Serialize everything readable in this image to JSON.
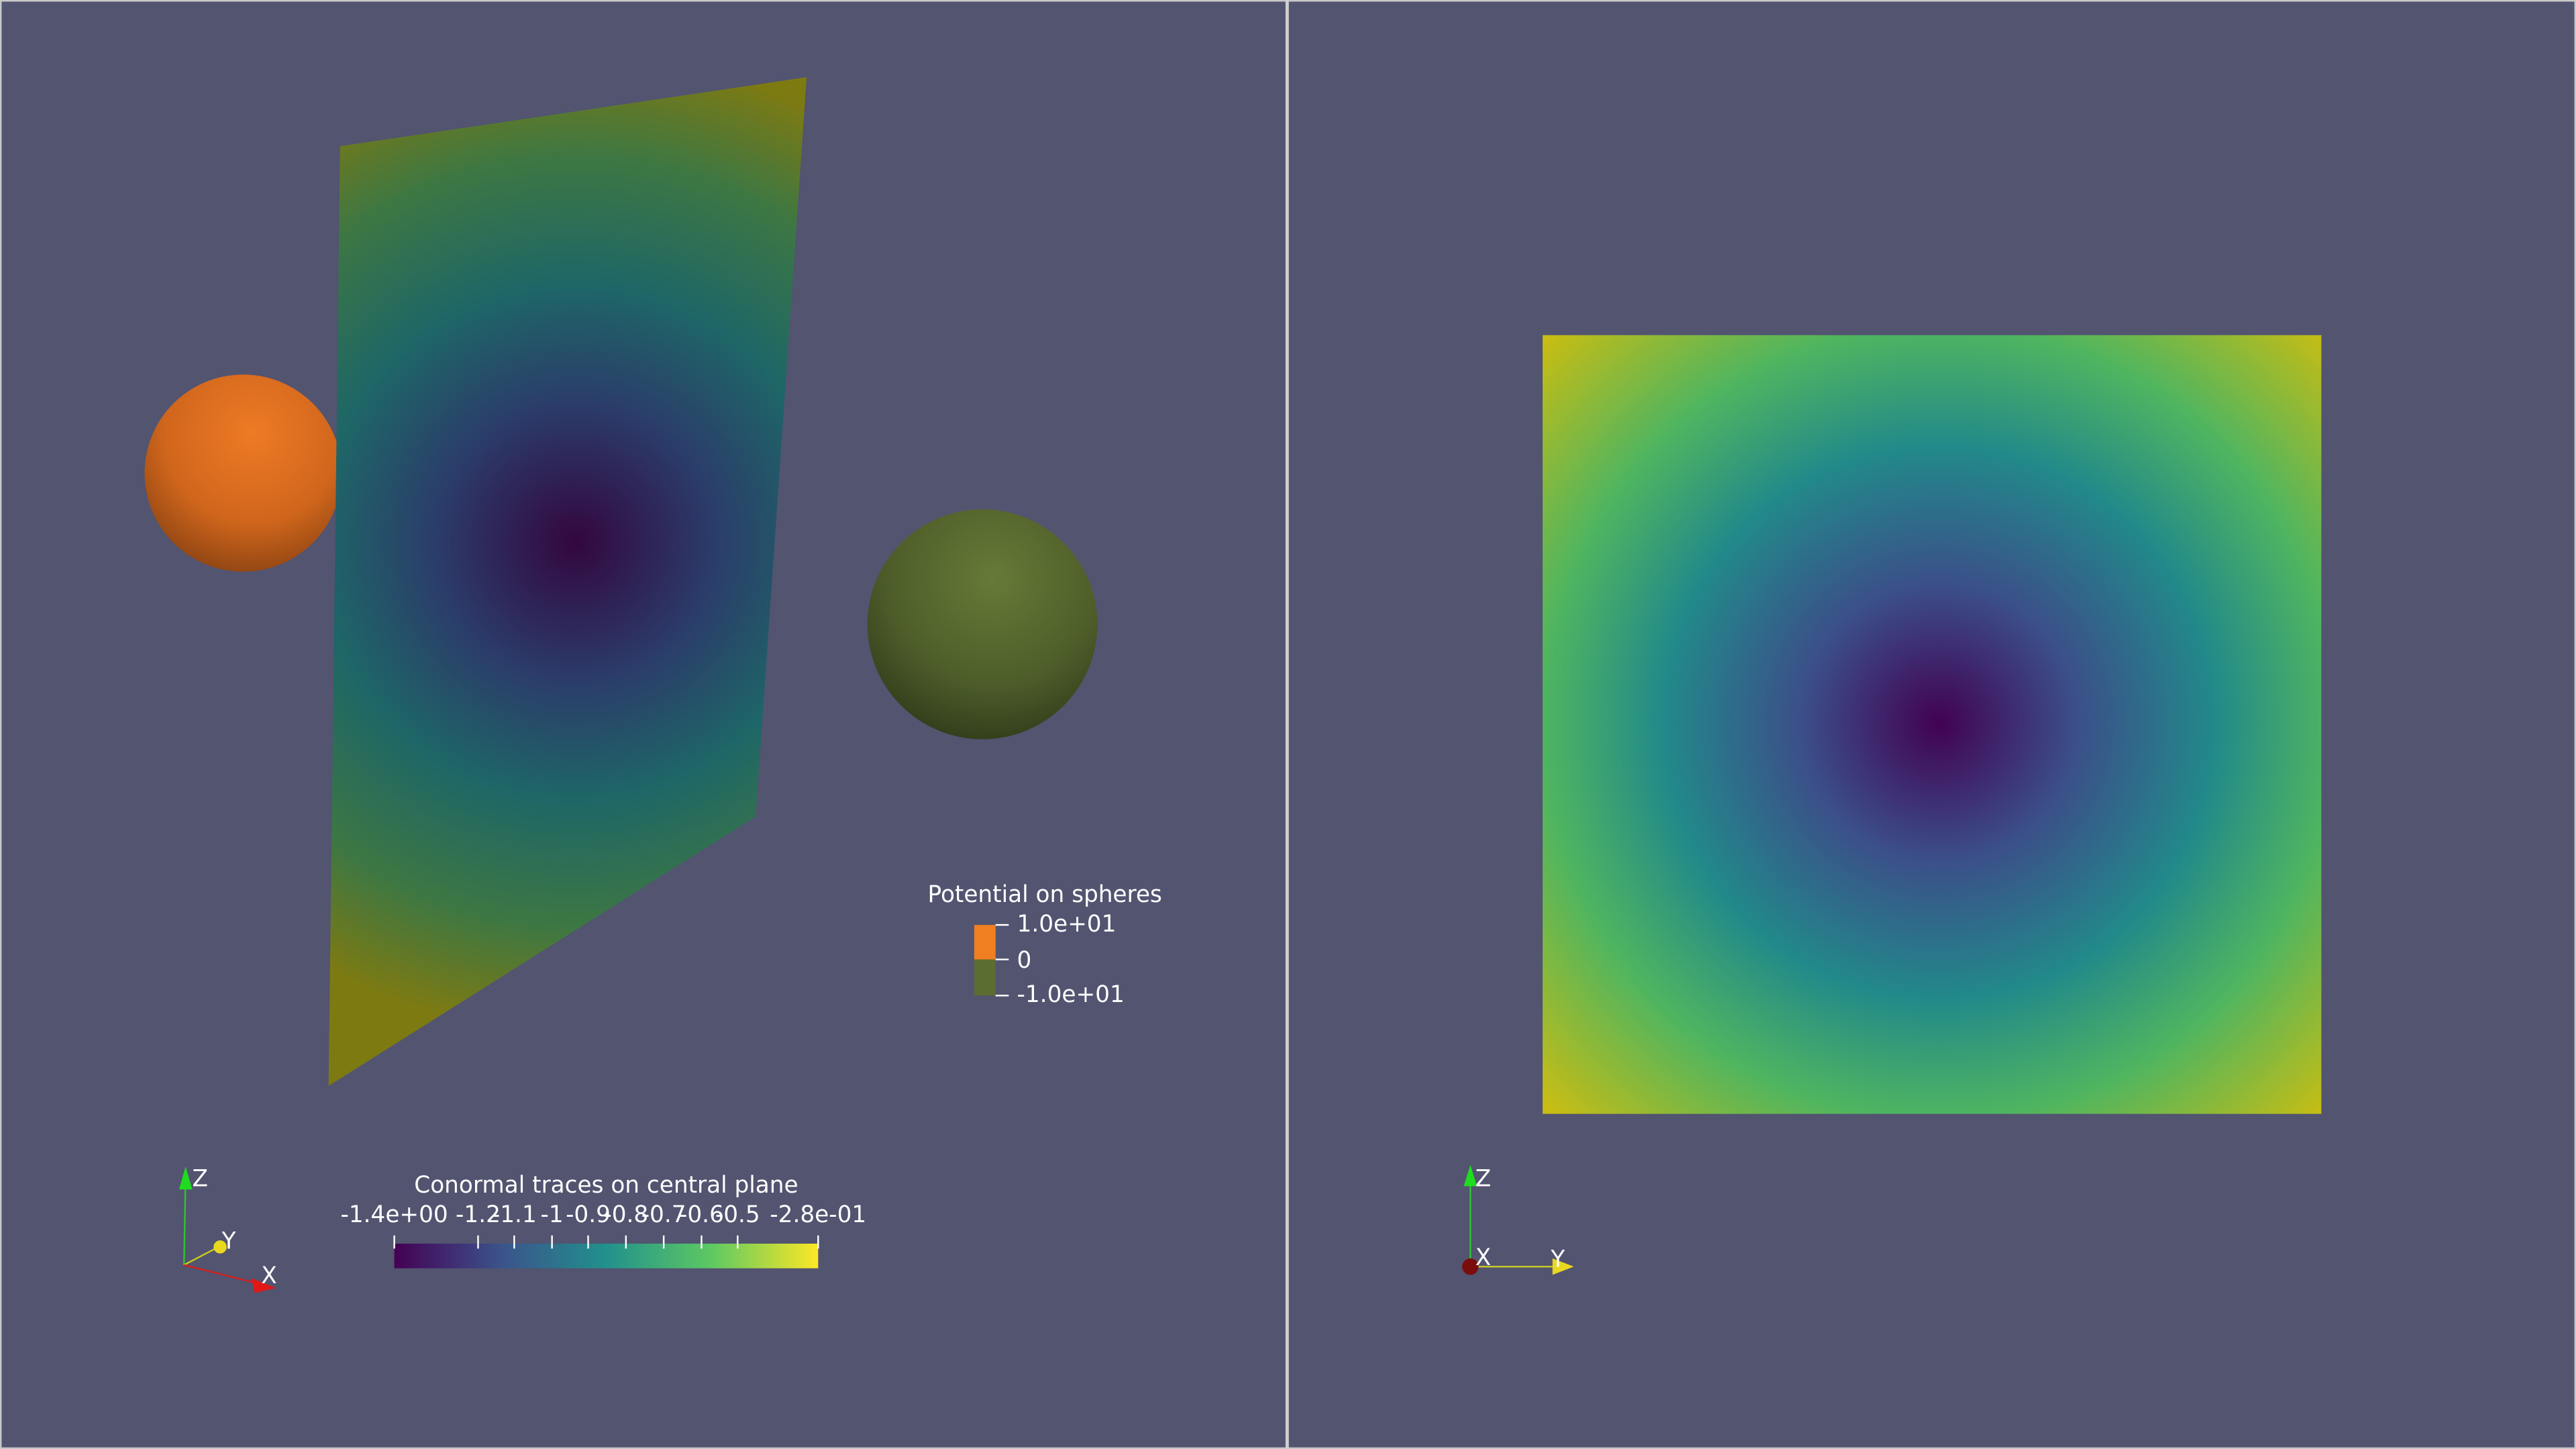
{
  "left_view": {
    "plane_colorbar": {
      "title": "Conormal traces on central plane",
      "labels": [
        "-1.4e+00",
        "-1.2",
        "-1.1",
        "-1",
        "-0.9",
        "-0.8",
        "-0.7",
        "-0.6",
        "-0.5",
        "-2.8e-01"
      ]
    },
    "sphere_legend": {
      "title": "Potential on spheres",
      "labels": [
        "1.0e+01",
        "0",
        "-1.0e+01"
      ]
    },
    "axes": {
      "z": "Z",
      "y": "Y",
      "x": "X"
    }
  },
  "right_view": {
    "axes": {
      "z": "Z",
      "x": "X",
      "y": "Y"
    }
  }
}
